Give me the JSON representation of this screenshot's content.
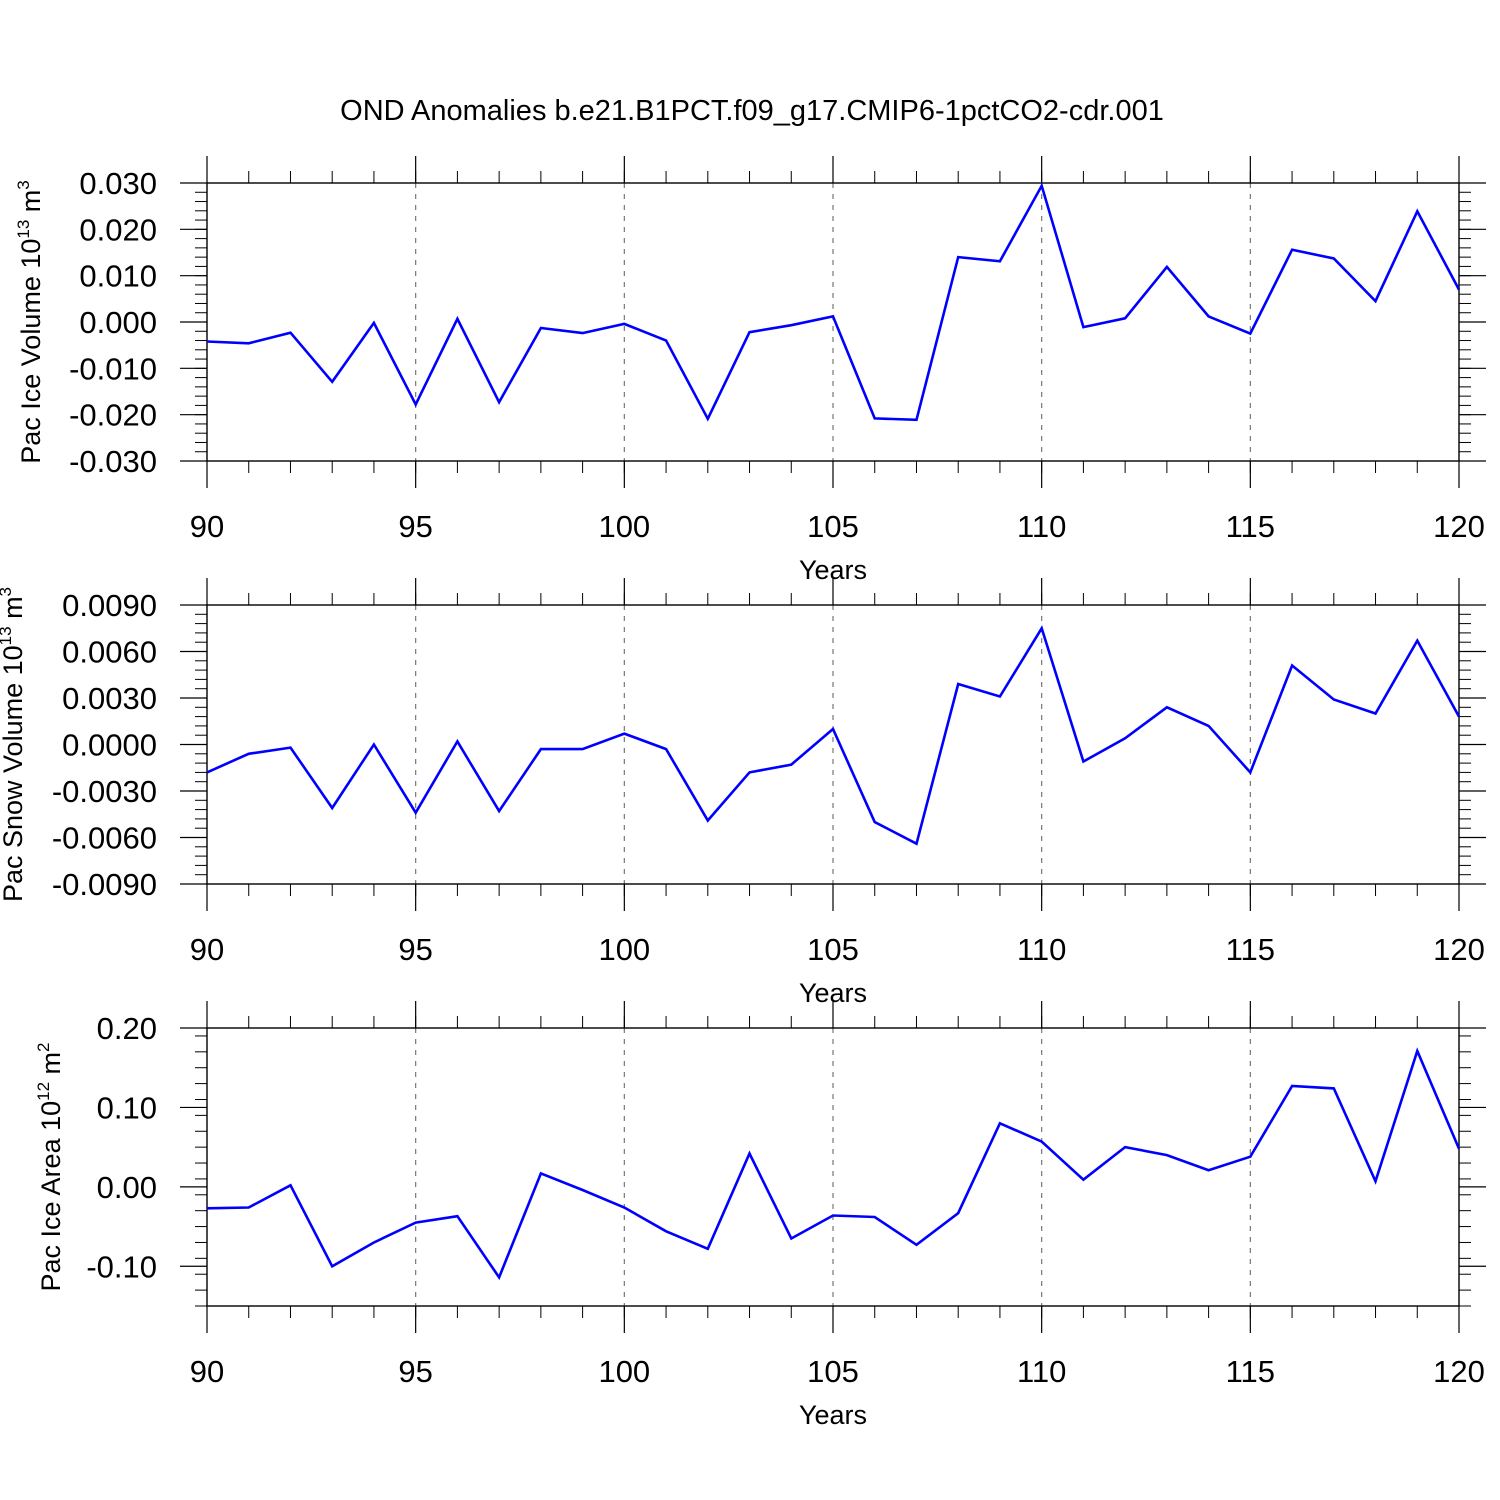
{
  "title": "OND Anomalies b.e21.B1PCT.f09_g17.CMIP6-1pctCO2-cdr.001",
  "chart_data": [
    {
      "type": "line",
      "ylabel": "Pac Ice Volume 10",
      "ylabel_exponent": "13",
      "ylabel_unit": "m",
      "ylabel_unit_exponent": "3",
      "xlabel": "Years",
      "xlim": [
        90,
        120
      ],
      "ylim": [
        -0.03,
        0.03
      ],
      "yticks": [
        -0.03,
        -0.02,
        -0.01,
        0.0,
        0.01,
        0.02,
        0.03
      ],
      "ytick_labels": [
        "-0.030",
        "-0.020",
        "-0.010",
        "0.000",
        "0.010",
        "0.020",
        "0.030"
      ],
      "xticks": [
        90,
        95,
        100,
        105,
        110,
        115,
        120
      ],
      "xtick_labels": [
        "90",
        "95",
        "100",
        "105",
        "110",
        "115",
        "120"
      ],
      "line_color": "#0000ff",
      "grid": "vertical dashed at major x ticks",
      "x": [
        90,
        91,
        92,
        93,
        94,
        95,
        96,
        97,
        98,
        99,
        100,
        101,
        102,
        103,
        104,
        105,
        106,
        107,
        108,
        109,
        110,
        111,
        112,
        113,
        114,
        115,
        116,
        117,
        118,
        119,
        120
      ],
      "values": [
        -0.0042,
        -0.0046,
        -0.0023,
        -0.0129,
        -0.0002,
        -0.0178,
        0.0007,
        -0.0173,
        -0.0013,
        -0.0024,
        -0.0004,
        -0.004,
        -0.0209,
        -0.0022,
        -0.0007,
        0.0012,
        -0.0208,
        -0.0211,
        0.014,
        0.0131,
        0.0294,
        -0.0011,
        0.0008,
        0.0119,
        0.0012,
        -0.0025,
        0.0156,
        0.0137,
        0.0045,
        0.0239,
        0.007
      ]
    },
    {
      "type": "line",
      "ylabel": "Pac Snow Volume 10",
      "ylabel_exponent": "13",
      "ylabel_unit": "m",
      "ylabel_unit_exponent": "3",
      "xlabel": "Years",
      "xlim": [
        90,
        120
      ],
      "ylim": [
        -0.009,
        0.009
      ],
      "yticks": [
        -0.009,
        -0.006,
        -0.003,
        0.0,
        0.003,
        0.006,
        0.009
      ],
      "ytick_labels": [
        "-0.0090",
        "-0.0060",
        "-0.0030",
        "0.0000",
        "0.0030",
        "0.0060",
        "0.0090"
      ],
      "xticks": [
        90,
        95,
        100,
        105,
        110,
        115,
        120
      ],
      "xtick_labels": [
        "90",
        "95",
        "100",
        "105",
        "110",
        "115",
        "120"
      ],
      "line_color": "#0000ff",
      "grid": "vertical dashed at major x ticks",
      "x": [
        90,
        91,
        92,
        93,
        94,
        95,
        96,
        97,
        98,
        99,
        100,
        101,
        102,
        103,
        104,
        105,
        106,
        107,
        108,
        109,
        110,
        111,
        112,
        113,
        114,
        115,
        116,
        117,
        118,
        119,
        120
      ],
      "values": [
        -0.0018,
        -0.0006,
        -0.0002,
        -0.0041,
        0.0,
        -0.0044,
        0.0002,
        -0.0043,
        -0.0003,
        -0.0003,
        0.0007,
        -0.0003,
        -0.0049,
        -0.0018,
        -0.0013,
        0.001,
        -0.005,
        -0.0064,
        0.0039,
        0.0031,
        0.0075,
        -0.0011,
        0.0004,
        0.0024,
        0.0012,
        -0.0018,
        0.0051,
        0.0029,
        0.002,
        0.0067,
        0.0018
      ]
    },
    {
      "type": "line",
      "ylabel": "Pac Ice Area 10",
      "ylabel_exponent": "12",
      "ylabel_unit": "m",
      "ylabel_unit_exponent": "2",
      "xlabel": "Years",
      "xlim": [
        90,
        120
      ],
      "ylim": [
        -0.15,
        0.2
      ],
      "yticks": [
        -0.1,
        0.0,
        0.1,
        0.2
      ],
      "ytick_labels": [
        "-0.10",
        "0.00",
        "0.10",
        "0.20"
      ],
      "xticks": [
        90,
        95,
        100,
        105,
        110,
        115,
        120
      ],
      "xtick_labels": [
        "90",
        "95",
        "100",
        "105",
        "110",
        "115",
        "120"
      ],
      "line_color": "#0000ff",
      "grid": "vertical dashed at major x ticks",
      "x": [
        90,
        91,
        92,
        93,
        94,
        95,
        96,
        97,
        98,
        99,
        100,
        101,
        102,
        103,
        104,
        105,
        106,
        107,
        108,
        109,
        110,
        111,
        112,
        113,
        114,
        115,
        116,
        117,
        118,
        119,
        120
      ],
      "values": [
        -0.027,
        -0.026,
        0.002,
        -0.1,
        -0.07,
        -0.045,
        -0.037,
        -0.114,
        0.017,
        -0.004,
        -0.026,
        -0.056,
        -0.078,
        0.042,
        -0.065,
        -0.036,
        -0.038,
        -0.073,
        -0.033,
        0.08,
        0.057,
        0.009,
        0.05,
        0.04,
        0.021,
        0.038,
        0.127,
        0.124,
        0.007,
        0.171,
        0.048
      ]
    }
  ]
}
